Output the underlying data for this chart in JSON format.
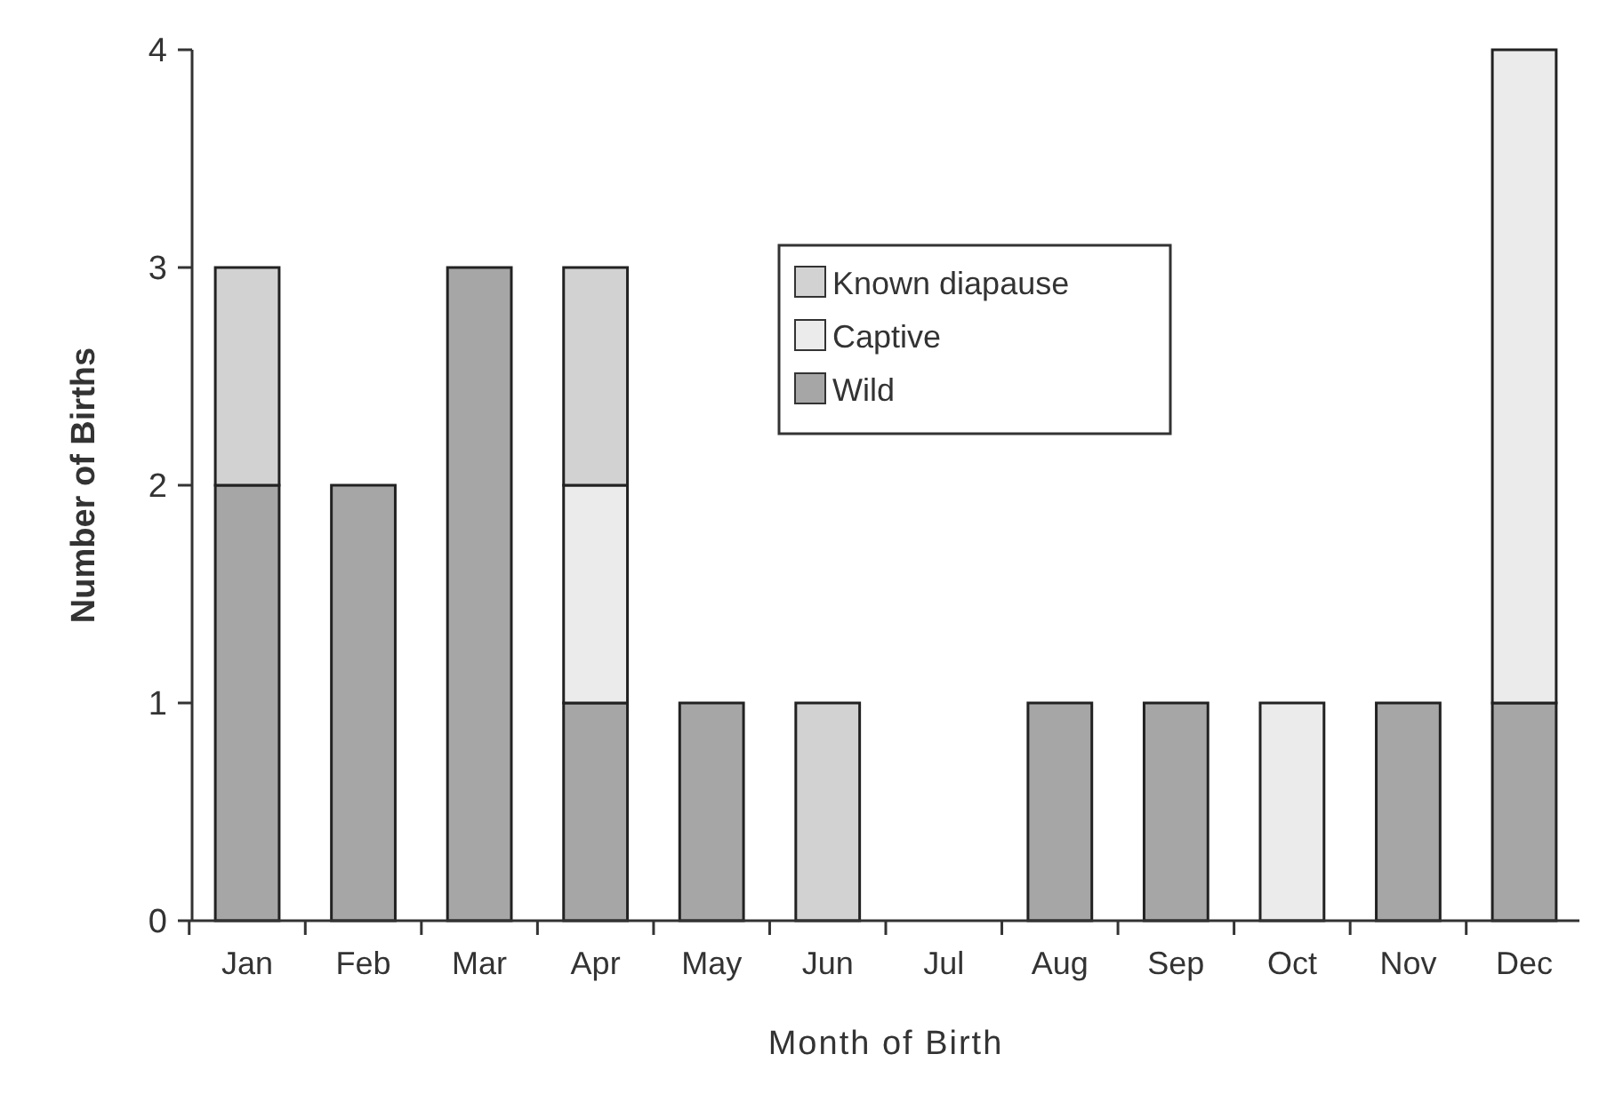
{
  "chart_data": {
    "type": "bar",
    "stacked": true,
    "xlabel": "Month of Birth",
    "ylabel": "Number of Births",
    "categories": [
      "Jan",
      "Feb",
      "Mar",
      "Apr",
      "May",
      "Jun",
      "Jul",
      "Aug",
      "Sep",
      "Oct",
      "Nov",
      "Dec"
    ],
    "series": [
      {
        "name": "Wild",
        "color": "#a6a6a6",
        "values": [
          2,
          2,
          3,
          1,
          1,
          0,
          0,
          1,
          1,
          0,
          1,
          1
        ]
      },
      {
        "name": "Captive",
        "color": "#ebebeb",
        "values": [
          0,
          0,
          0,
          1,
          0,
          0,
          0,
          0,
          0,
          1,
          0,
          3
        ]
      },
      {
        "name": "Known diapause",
        "color": "#d2d2d2",
        "values": [
          1,
          0,
          0,
          1,
          0,
          1,
          0,
          0,
          0,
          0,
          0,
          0
        ]
      }
    ],
    "ylim": [
      0,
      4
    ],
    "yticks": [
      0,
      1,
      2,
      3,
      4
    ],
    "grid": false,
    "legend": "top"
  }
}
